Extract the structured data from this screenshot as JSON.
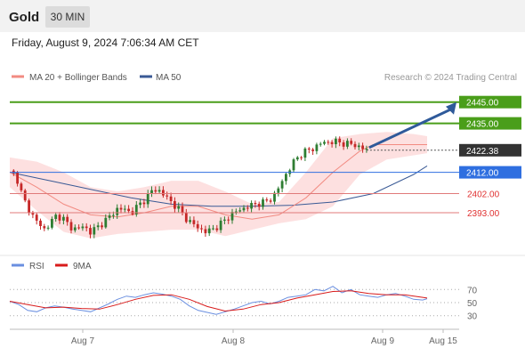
{
  "header": {
    "symbol": "Gold",
    "timeframe": "30 MIN"
  },
  "timestamp": "Friday, August 9, 2024 7:06:34 AM CET",
  "legend": {
    "ma20_label": "MA 20 + Bollinger Bands",
    "ma50_label": "MA 50",
    "copyright": "Research © 2024 Trading Central",
    "rsi_label": "RSI",
    "ma9_label": "9MA"
  },
  "colors": {
    "candle_up": "#2e7d32",
    "candle_down": "#c62828",
    "ma20": "#f28b82",
    "ma50": "#3a5a95",
    "bollinger_fill": "#fde0e0",
    "resistance": "#4a9e1a",
    "pivot": "#2f6fe0",
    "support": "#e07a7a",
    "arrow": "#2f5a9a",
    "rsi_line": "#6a8fe0",
    "rsi_ma": "#d81b1b",
    "price_label": "#333333"
  },
  "chart_data": [
    {
      "type": "candlestick",
      "title": "Gold 30 MIN",
      "x_ticks": [
        "Aug 7",
        "Aug 8",
        "Aug 9",
        "Aug 15"
      ],
      "ylim": [
        2375,
        2452
      ],
      "current_price": 2422.38,
      "levels": [
        {
          "label": "2445.00",
          "value": 2445.0,
          "kind": "resistance"
        },
        {
          "label": "2435.00",
          "value": 2435.0,
          "kind": "resistance"
        },
        {
          "label": "2412.00",
          "value": 2412.0,
          "kind": "pivot"
        },
        {
          "label": "2402.00",
          "value": 2402.0,
          "kind": "support"
        },
        {
          "label": "2393.00",
          "value": 2393.0,
          "kind": "support"
        }
      ],
      "current_label": "2422.38",
      "arrow": {
        "from": 2422.38,
        "to": 2445.0
      },
      "close_path": [
        [
          0,
          2412.8
        ],
        [
          1,
          2410.0
        ],
        [
          2,
          2399.5
        ],
        [
          3,
          2393.5
        ],
        [
          4,
          2389.0
        ],
        [
          5,
          2385.0
        ],
        [
          6,
          2388.0
        ],
        [
          7,
          2392.0
        ],
        [
          8,
          2390.0
        ],
        [
          9,
          2386.0
        ],
        [
          10,
          2385.5
        ],
        [
          11,
          2386.5
        ],
        [
          12,
          2384.0
        ],
        [
          13,
          2386.0
        ],
        [
          14,
          2389.0
        ],
        [
          15,
          2391.5
        ],
        [
          16,
          2395.0
        ],
        [
          17,
          2394.5
        ],
        [
          18,
          2393.0
        ],
        [
          19,
          2396.0
        ],
        [
          20,
          2399.0
        ],
        [
          21,
          2403.0
        ],
        [
          22,
          2404.0
        ],
        [
          23,
          2401.0
        ],
        [
          24,
          2398.0
        ],
        [
          25,
          2395.0
        ],
        [
          26,
          2391.0
        ],
        [
          27,
          2388.0
        ],
        [
          28,
          2386.0
        ],
        [
          29,
          2384.0
        ],
        [
          30,
          2385.0
        ],
        [
          31,
          2387.0
        ],
        [
          32,
          2389.5
        ],
        [
          33,
          2392.5
        ],
        [
          34,
          2394.0
        ],
        [
          35,
          2395.5
        ],
        [
          36,
          2396.5
        ],
        [
          37,
          2397.5
        ],
        [
          38,
          2398.0
        ],
        [
          39,
          2400.0
        ],
        [
          40,
          2405.0
        ],
        [
          41,
          2411.0
        ],
        [
          42,
          2416.0
        ],
        [
          43,
          2420.0
        ],
        [
          44,
          2422.0
        ],
        [
          45,
          2423.0
        ],
        [
          46,
          2425.5
        ],
        [
          47,
          2426.0
        ],
        [
          48,
          2426.5
        ],
        [
          49,
          2426.0
        ],
        [
          50,
          2425.5
        ],
        [
          51,
          2425.0
        ],
        [
          52,
          2424.0
        ],
        [
          53,
          2422.38
        ]
      ],
      "ma20_path": [
        [
          0,
          2412
        ],
        [
          4,
          2405
        ],
        [
          8,
          2397
        ],
        [
          12,
          2392
        ],
        [
          16,
          2391
        ],
        [
          20,
          2393
        ],
        [
          24,
          2396
        ],
        [
          28,
          2396
        ],
        [
          32,
          2392
        ],
        [
          36,
          2390
        ],
        [
          40,
          2392
        ],
        [
          44,
          2400
        ],
        [
          48,
          2412
        ],
        [
          52,
          2422
        ],
        [
          54,
          2425
        ],
        [
          58,
          2425
        ],
        [
          62,
          2425
        ]
      ],
      "ma50_path": [
        [
          0,
          2412
        ],
        [
          6,
          2408
        ],
        [
          12,
          2404
        ],
        [
          18,
          2400
        ],
        [
          24,
          2397
        ],
        [
          30,
          2396
        ],
        [
          36,
          2396
        ],
        [
          42,
          2396.5
        ],
        [
          48,
          2398
        ],
        [
          54,
          2402
        ],
        [
          60,
          2411
        ],
        [
          62,
          2415
        ]
      ],
      "bollinger_upper": [
        [
          0,
          2419
        ],
        [
          4,
          2417
        ],
        [
          8,
          2412
        ],
        [
          12,
          2405
        ],
        [
          16,
          2403
        ],
        [
          20,
          2405
        ],
        [
          24,
          2408
        ],
        [
          28,
          2408
        ],
        [
          32,
          2403
        ],
        [
          36,
          2397
        ],
        [
          40,
          2398
        ],
        [
          44,
          2412
        ],
        [
          48,
          2428
        ],
        [
          52,
          2430
        ],
        [
          56,
          2431
        ],
        [
          60,
          2430
        ],
        [
          62,
          2429
        ]
      ],
      "bollinger_lower": [
        [
          0,
          2405
        ],
        [
          4,
          2394
        ],
        [
          8,
          2384
        ],
        [
          12,
          2381
        ],
        [
          16,
          2383
        ],
        [
          20,
          2384
        ],
        [
          24,
          2385
        ],
        [
          28,
          2385
        ],
        [
          32,
          2382
        ],
        [
          36,
          2385
        ],
        [
          40,
          2388
        ],
        [
          44,
          2390
        ],
        [
          48,
          2396
        ],
        [
          52,
          2411
        ],
        [
          56,
          2418
        ],
        [
          60,
          2420
        ],
        [
          62,
          2421
        ]
      ]
    },
    {
      "type": "line",
      "title": "RSI",
      "series": [
        {
          "name": "RSI"
        },
        {
          "name": "9MA"
        }
      ],
      "y_ticks": [
        "70",
        "50",
        "30"
      ],
      "ylim": [
        20,
        80
      ],
      "rsi": [
        [
          0,
          52
        ],
        [
          2,
          47
        ],
        [
          4,
          38
        ],
        [
          6,
          36
        ],
        [
          8,
          42
        ],
        [
          10,
          45
        ],
        [
          12,
          43
        ],
        [
          14,
          40
        ],
        [
          16,
          38
        ],
        [
          18,
          36
        ],
        [
          20,
          42
        ],
        [
          22,
          48
        ],
        [
          24,
          55
        ],
        [
          26,
          60
        ],
        [
          28,
          58
        ],
        [
          30,
          62
        ],
        [
          32,
          65
        ],
        [
          34,
          63
        ],
        [
          36,
          60
        ],
        [
          38,
          55
        ],
        [
          40,
          45
        ],
        [
          42,
          38
        ],
        [
          44,
          35
        ],
        [
          46,
          32
        ],
        [
          48,
          36
        ],
        [
          50,
          40
        ],
        [
          52,
          45
        ],
        [
          54,
          50
        ],
        [
          56,
          52
        ],
        [
          58,
          48
        ],
        [
          60,
          52
        ],
        [
          62,
          58
        ],
        [
          64,
          60
        ],
        [
          66,
          62
        ],
        [
          68,
          70
        ],
        [
          70,
          68
        ],
        [
          72,
          75
        ],
        [
          74,
          65
        ],
        [
          76,
          70
        ],
        [
          78,
          62
        ],
        [
          80,
          60
        ],
        [
          82,
          58
        ],
        [
          84,
          62
        ],
        [
          86,
          64
        ],
        [
          88,
          60
        ],
        [
          90,
          55
        ],
        [
          92,
          54
        ],
        [
          93,
          56
        ]
      ],
      "ma9": [
        [
          0,
          52
        ],
        [
          4,
          47
        ],
        [
          8,
          42
        ],
        [
          12,
          43
        ],
        [
          16,
          41
        ],
        [
          20,
          40
        ],
        [
          24,
          47
        ],
        [
          28,
          55
        ],
        [
          32,
          61
        ],
        [
          36,
          62
        ],
        [
          40,
          55
        ],
        [
          44,
          44
        ],
        [
          48,
          37
        ],
        [
          52,
          40
        ],
        [
          56,
          47
        ],
        [
          60,
          50
        ],
        [
          64,
          57
        ],
        [
          68,
          62
        ],
        [
          72,
          67
        ],
        [
          76,
          68
        ],
        [
          80,
          64
        ],
        [
          84,
          62
        ],
        [
          88,
          62
        ],
        [
          92,
          58
        ],
        [
          93,
          57
        ]
      ]
    }
  ]
}
